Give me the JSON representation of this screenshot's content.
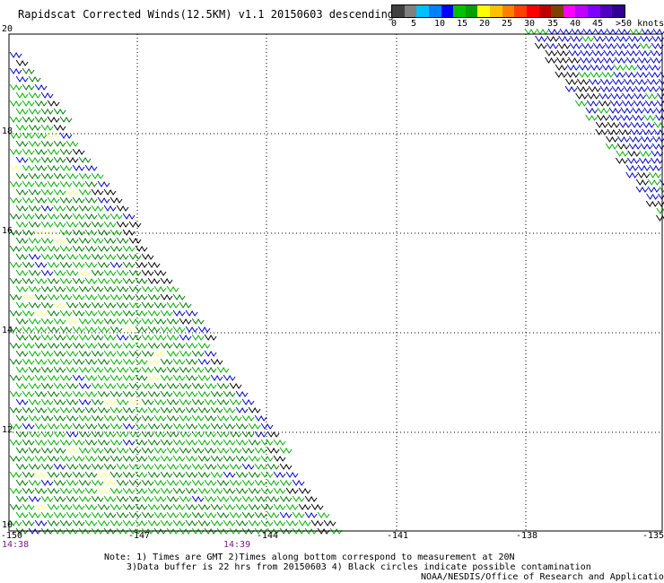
{
  "header": {
    "title": "Rapidscat Corrected Winds(12.5KM) v1.1 20150603 descending"
  },
  "colorbar": {
    "colors": [
      "#404040",
      "#808080",
      "#00c0ff",
      "#0080ff",
      "#0000ff",
      "#00c000",
      "#00a000",
      "#ffff00",
      "#ffc000",
      "#ff8000",
      "#ff4000",
      "#ff0000",
      "#c00000",
      "#804000",
      "#ff00ff",
      "#c000ff",
      "#8000ff",
      "#5000c0",
      "#300090"
    ],
    "labels": [
      "0",
      "5",
      "10",
      "15",
      "20",
      "25",
      "30",
      "35",
      "40",
      "45",
      ">50 knots"
    ]
  },
  "map": {
    "lat_labels": [
      "20",
      "18",
      "16",
      "14",
      "12",
      "10"
    ],
    "lon_labels": [
      "-150",
      "-147",
      "-144",
      "-141",
      "-138",
      "-135"
    ],
    "time_labels": [
      "14:38",
      "14:39"
    ],
    "barb_colors": {
      "green": "#00b000",
      "dark_green": "#007800",
      "blue": "#0000cc",
      "black": "#000000",
      "yellow": "#ffff80"
    }
  },
  "notes": {
    "line1": "Note: 1) Times are GMT 2)Times along bottom correspond to measurement at 20N",
    "line2": "3)Data buffer is 22 hrs from 20150603 4) Black circles indicate possible contamination",
    "line3": "NOAA/NESDIS/Office of Research and Applications"
  }
}
